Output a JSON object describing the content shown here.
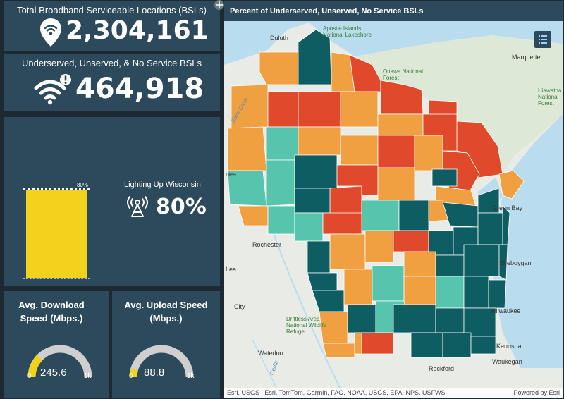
{
  "total_bsl": {
    "title": "Total Broadband Serviceable Locations (BSLs)",
    "value": "2,304,161",
    "icon": "location-wifi-icon"
  },
  "underserved": {
    "title": "Underserved, Unserved, & No Service BSLs",
    "value": "464,918",
    "icon": "wifi-alert-icon"
  },
  "lighting": {
    "bar_label": "80%",
    "bar_fraction": 0.8,
    "title": "Lighting Up Wisconsin",
    "value": "80%",
    "icon": "signal-tower-icon",
    "bar_color": "#f2d21c"
  },
  "download": {
    "title": "Avg. Download Speed (Mbps.)",
    "value": "245.6",
    "min": "0",
    "max": "1k",
    "fraction": 0.2456
  },
  "upload": {
    "title": "Avg. Upload Speed (Mbps.)",
    "value": "88.8",
    "min": "0",
    "max": "1k",
    "fraction": 0.0888
  },
  "map": {
    "title": "Percent of Underserved, Unserved, No Service BSLs",
    "attribution": "Esri, USGS | Esri, TomTom, Garmin, FAO, NOAA, USGS, EPA, NPS, USFWS",
    "powered_by": "Powered by Esri",
    "colors": {
      "high": "#e04a2a",
      "mid": "#f0a040",
      "low": "#57c4ae",
      "lowest": "#0e5d62"
    },
    "places": {
      "duluth": "Duluth",
      "apostle": "Apostle Islands National Lakeshore",
      "ottawa": "Ottawa National Forest",
      "marquette": "Marquette",
      "hiawatha": "Hiawatha National Forest",
      "saint_croix": "Saint Croix",
      "rochester": "Rochester",
      "sheboygan": "Sheboygan",
      "milwaukee": "Milwaukee",
      "kenosha": "Kenosha",
      "waukegan": "Waukegan",
      "rockford": "Rockford",
      "waterloo": "Waterloo",
      "driftless": "Driftless Area National Wildlife Refuge",
      "cedar": "Cedar",
      "city": "City",
      "lea": "Lea",
      "nea": "nea",
      "green_bay": "Green Bay"
    }
  }
}
